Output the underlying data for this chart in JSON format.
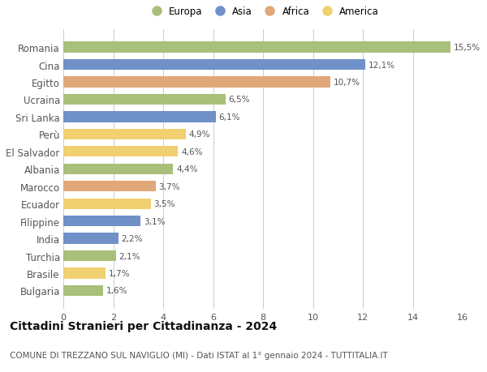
{
  "categories": [
    "Bulgaria",
    "Brasile",
    "Turchia",
    "India",
    "Filippine",
    "Ecuador",
    "Marocco",
    "Albania",
    "El Salvador",
    "Perù",
    "Sri Lanka",
    "Ucraina",
    "Egitto",
    "Cina",
    "Romania"
  ],
  "values": [
    1.6,
    1.7,
    2.1,
    2.2,
    3.1,
    3.5,
    3.7,
    4.4,
    4.6,
    4.9,
    6.1,
    6.5,
    10.7,
    12.1,
    15.5
  ],
  "continents": [
    "Europa",
    "America",
    "Europa",
    "Asia",
    "Asia",
    "America",
    "Africa",
    "Europa",
    "America",
    "America",
    "Asia",
    "Europa",
    "Africa",
    "Asia",
    "Europa"
  ],
  "colors": {
    "Europa": "#a8c07a",
    "Asia": "#7090c8",
    "Africa": "#e0a878",
    "America": "#f0d070"
  },
  "label_color": "#555555",
  "bg_color": "#ffffff",
  "grid_color": "#cccccc",
  "title": "Cittadini Stranieri per Cittadinanza - 2024",
  "subtitle": "COMUNE DI TREZZANO SUL NAVIGLIO (MI) - Dati ISTAT al 1° gennaio 2024 - TUTTITALIA.IT",
  "xlim": [
    0,
    16
  ],
  "xticks": [
    0,
    2,
    4,
    6,
    8,
    10,
    12,
    14,
    16
  ],
  "title_fontsize": 10,
  "subtitle_fontsize": 7.5,
  "ylabel_fontsize": 8.5,
  "value_fontsize": 7.5,
  "tick_fontsize": 8,
  "bar_height": 0.62,
  "legend_entries": [
    "Europa",
    "Asia",
    "Africa",
    "America"
  ],
  "legend_fontsize": 8.5
}
